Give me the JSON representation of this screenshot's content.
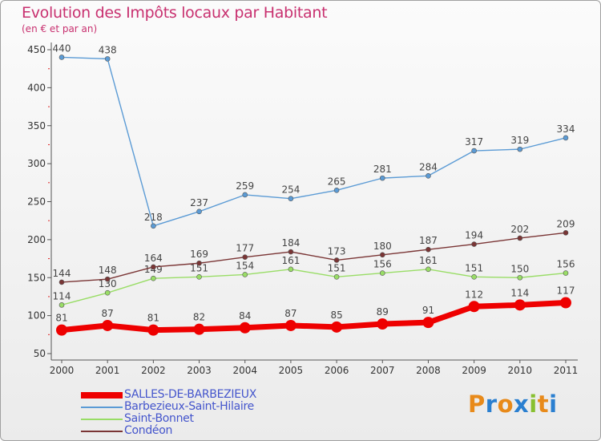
{
  "header": {
    "title": "Evolution des Impôts locaux par Habitant",
    "subtitle": "(en € et par an)"
  },
  "brand": {
    "text": "Proxiti"
  },
  "chart_data": {
    "type": "line",
    "title": "Evolution des Impôts locaux par Habitant",
    "subtitle": "(en € et par an)",
    "xlabel": "",
    "ylabel": "",
    "x": [
      "2000",
      "2001",
      "2002",
      "2003",
      "2004",
      "2005",
      "2006",
      "2007",
      "2008",
      "2009",
      "2010",
      "2011"
    ],
    "ylim": [
      50,
      450
    ],
    "yticks": [
      50,
      100,
      150,
      200,
      250,
      300,
      350,
      400,
      450
    ],
    "grid": false,
    "legend_position": "bottom-left",
    "series": [
      {
        "name": "Barbezieux-Saint-Hilaire",
        "color": "#5b9bd5",
        "values": [
          440,
          438,
          218,
          237,
          259,
          254,
          265,
          281,
          284,
          317,
          319,
          334
        ]
      },
      {
        "name": "Saint-Bonnet",
        "color": "#99dd66",
        "values": [
          114,
          130,
          149,
          151,
          154,
          161,
          151,
          156,
          161,
          151,
          150,
          156
        ]
      },
      {
        "name": "Condéon",
        "color": "#7a3535",
        "values": [
          144,
          148,
          164,
          169,
          177,
          184,
          173,
          180,
          187,
          194,
          202,
          209
        ]
      },
      {
        "name": "SALLES-DE-BARBEZIEUX",
        "color": "#ee0000",
        "values": [
          81,
          87,
          81,
          82,
          84,
          87,
          85,
          89,
          91,
          112,
          114,
          117
        ]
      }
    ],
    "legend_order": [
      "SALLES-DE-BARBEZIEUX",
      "Barbezieux-Saint-Hilaire",
      "Saint-Bonnet",
      "Condéon"
    ]
  }
}
